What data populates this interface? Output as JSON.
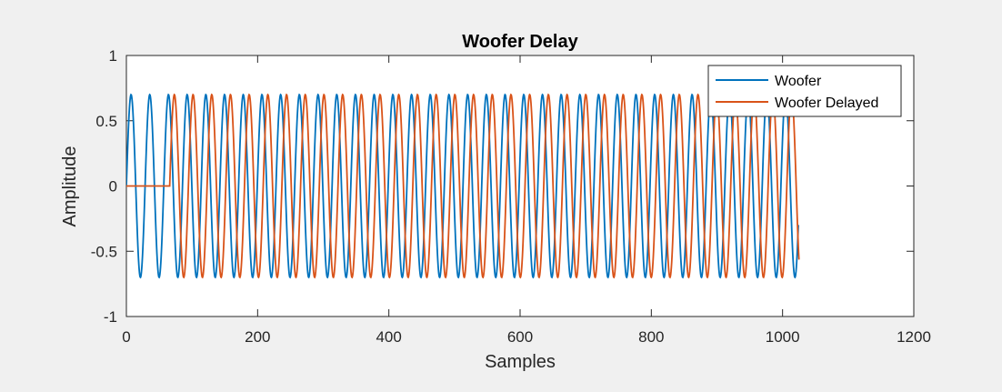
{
  "chart_data": {
    "type": "line",
    "title": "Woofer Delay",
    "xlabel": "Samples",
    "ylabel": "Amplitude",
    "xlim": [
      0,
      1200
    ],
    "ylim": [
      -1,
      1
    ],
    "xticks": [
      "0",
      "200",
      "400",
      "600",
      "800",
      "1000",
      "1200"
    ],
    "yticks": [
      "1",
      "0.5",
      "0",
      "-0.5",
      "-1"
    ],
    "grid": false,
    "legend_position": "top-right",
    "series": [
      {
        "name": "Woofer",
        "color": "#0072BD",
        "amplitude": 0.7,
        "period_samples": 28.5,
        "delay_samples": 0,
        "x_start": 0,
        "x_end": 1024,
        "description": "0.7*sin(2*pi*(x)/28.5) for x in [0,1024]"
      },
      {
        "name": "Woofer Delayed",
        "color": "#D95319",
        "amplitude": 0.7,
        "period_samples": 28.5,
        "delay_samples": 66,
        "x_start": 0,
        "x_end": 1024,
        "x_end_delayed_plot": 1025,
        "description": "0 for x<66, then 0.7*sin(2*pi*(x-66)/28.5)"
      }
    ]
  }
}
